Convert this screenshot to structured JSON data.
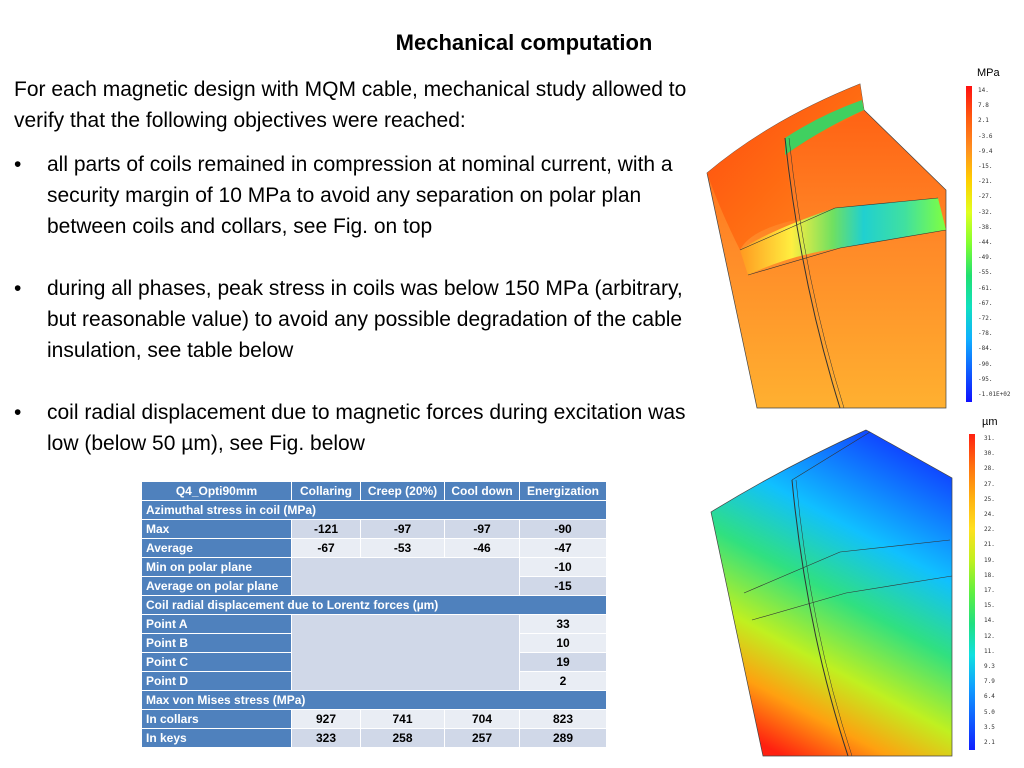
{
  "title": "Mechanical computation",
  "intro": "For each magnetic design with MQM cable, mechanical study allowed to verify that the following objectives were reached:",
  "bullets": [
    "all parts of coils remained in compression at nominal current, with a security margin of 10 MPa to avoid any separation on polar plan between coils and collars, see Fig. on top",
    "during all phases, peak stress in coils was below 150 MPa (arbitrary, but reasonable value) to avoid any possible degradation of the cable insulation, see table below",
    "coil radial displacement due to magnetic forces during excitation was low (below 50 µm), see Fig. below"
  ],
  "table": {
    "headers": [
      "Q4_Opti90mm",
      "Collaring",
      "Creep (20%)",
      "Cool down",
      "Energization"
    ],
    "sec_azimuthal": "Azimuthal stress in coil (MPa)",
    "max": {
      "label": "Max",
      "values": [
        "-121",
        "-97",
        "-97",
        "-90"
      ]
    },
    "average": {
      "label": "Average",
      "values": [
        "-67",
        "-53",
        "-46",
        "-47"
      ]
    },
    "min_polar": {
      "label": "Min on polar plane",
      "value": "-10"
    },
    "avg_polar": {
      "label": "Average on polar plane",
      "value": "-15"
    },
    "sec_disp": "Coil radial displacement due to Lorentz forces (µm)",
    "points": [
      {
        "label": "Point A",
        "value": "33"
      },
      {
        "label": "Point B",
        "value": "10"
      },
      {
        "label": "Point C",
        "value": "19"
      },
      {
        "label": "Point D",
        "value": "2"
      }
    ],
    "sec_vm": "Max von Mises stress (MPa)",
    "collars": {
      "label": "In collars",
      "values": [
        "927",
        "741",
        "704",
        "823"
      ]
    },
    "keys": {
      "label": "In keys",
      "values": [
        "323",
        "258",
        "257",
        "289"
      ]
    }
  },
  "fig_stress": {
    "unit": "MPa",
    "ticks": [
      "14.",
      "7.8",
      "2.1",
      "-3.6",
      "-9.4",
      "-15.",
      "-21.",
      "-27.",
      "-32.",
      "-38.",
      "-44.",
      "-49.",
      "-55.",
      "-61.",
      "-67.",
      "-72.",
      "-78.",
      "-84.",
      "-90.",
      "-95.",
      "-1.01E+02"
    ]
  },
  "fig_disp": {
    "unit": "µm",
    "ticks": [
      "31.",
      "30.",
      "28.",
      "27.",
      "25.",
      "24.",
      "22.",
      "21.",
      "19.",
      "18.",
      "17.",
      "15.",
      "14.",
      "12.",
      "11.",
      "9.3",
      "7.9",
      "6.4",
      "5.0",
      "3.5",
      "2.1"
    ]
  }
}
